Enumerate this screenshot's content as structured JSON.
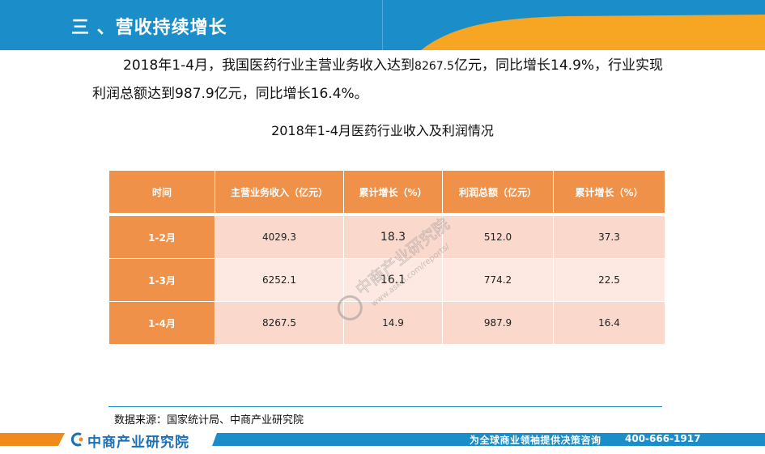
{
  "header": {
    "title": "三 、营收持续增长"
  },
  "paragraph": {
    "part1": "2018年1-4月，我国医药行业主营业务收入达到",
    "value1": "8267.5",
    "part2": "亿元，同比增长14.9%，行业实现利润总额达到987.9亿元，同比增长16.4%。"
  },
  "table": {
    "title": "2018年1-4月医药行业收入及利润情况",
    "headers": [
      "时间",
      "主营业务收入（亿元）",
      "累计增长（%）",
      "利润总额（亿元）",
      "累计增长（%）"
    ],
    "rows": [
      [
        "1-2月",
        "4029.3",
        "18.3",
        "512.0",
        "37.3"
      ],
      [
        "1-3月",
        "6252.1",
        "16.1",
        "774.2",
        "22.5"
      ],
      [
        "1-4月",
        "8267.5",
        "14.9",
        "987.9",
        "16.4"
      ]
    ]
  },
  "watermark": {
    "name": "中商产业研究院",
    "url": "www.askci.com/reports/"
  },
  "source": "数据来源：国家统计局、中商产业研究院",
  "footer": {
    "brand": "中商产业研究院",
    "slogan": "为全球商业领袖提供决策咨询",
    "phone": "400-666-1917"
  },
  "colors": {
    "blue": "#1b8ec9",
    "orange": "#f0914a",
    "row_light": "#fde9e2",
    "row_dark": "#fbd8cc"
  }
}
